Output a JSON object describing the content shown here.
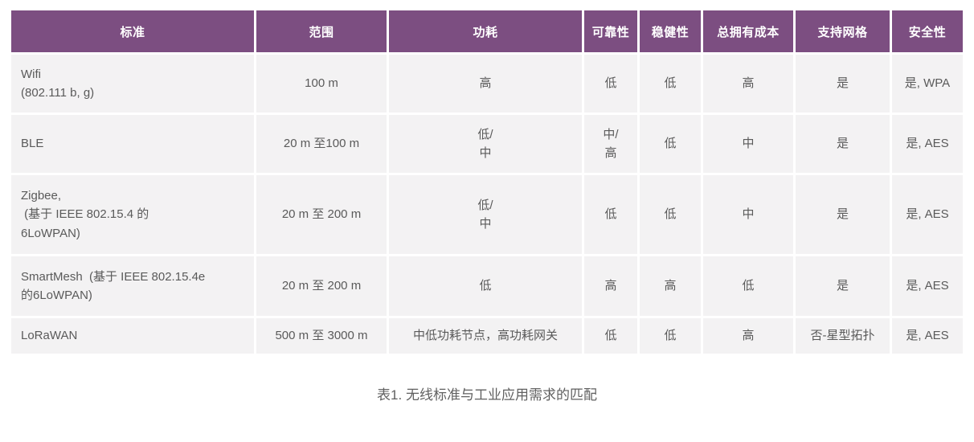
{
  "colors": {
    "header_bg": "#7c4e81",
    "header_text": "#ffffff",
    "cell_bg": "#f3f2f3",
    "cell_text": "#5a5a5a",
    "grid_gap": "#ffffff",
    "caption_text": "#606060"
  },
  "chart_data": {
    "type": "table",
    "title": "表1. 无线标准与工业应用需求的匹配",
    "columns": [
      "标准",
      "范围",
      "功耗",
      "可靠性",
      "稳健性",
      "总拥有成本",
      "支持网格",
      "安全性"
    ],
    "rows": [
      [
        "Wifi\n(802.111 b, g)",
        "100 m",
        "高",
        "低",
        "低",
        "高",
        "是",
        "是, WPA"
      ],
      [
        "BLE",
        "20 m 至100 m",
        "低/\n中",
        "中/\n高",
        "低",
        "中",
        "是",
        "是, AES"
      ],
      [
        "Zigbee,\n (基于 IEEE 802.15.4 的\n6LoWPAN)",
        "20 m 至 200 m",
        "低/\n中",
        "低",
        "低",
        "中",
        "是",
        "是, AES"
      ],
      [
        "SmartMesh  (基于 IEEE 802.15.4e\n的6LoWPAN)",
        "20 m 至 200 m",
        "低",
        "高",
        "高",
        "低",
        "是",
        "是, AES"
      ],
      [
        "LoRaWAN",
        "500 m 至 3000 m",
        "中低功耗节点，高功耗网关",
        "低",
        "低",
        "高",
        "否-星型拓扑",
        "是, AES"
      ]
    ]
  }
}
